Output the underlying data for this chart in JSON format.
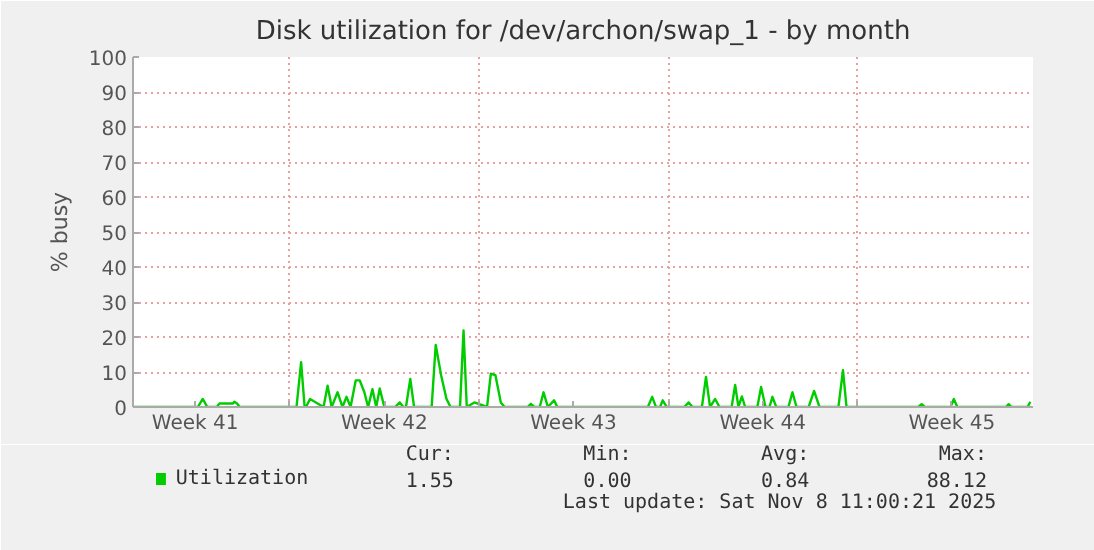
{
  "chart_data": {
    "type": "line",
    "title": "Disk utilization for /dev/archon/swap_1 - by month",
    "ylabel": "% busy",
    "xlim": [
      "2025-10-07T04:48",
      "2025-11-09T12:00"
    ],
    "ylim": [
      0,
      100
    ],
    "xticks": [
      {
        "value": "2025-10-09T12:00",
        "label": "Week 41"
      },
      {
        "value": "2025-10-13",
        "label": null
      },
      {
        "value": "2025-10-16T12:00",
        "label": "Week 42"
      },
      {
        "value": "2025-10-20",
        "label": null
      },
      {
        "value": "2025-10-23T12:00",
        "label": "Week 43"
      },
      {
        "value": "2025-10-27",
        "label": null
      },
      {
        "value": "2025-10-30T12:00",
        "label": "Week 44"
      },
      {
        "value": "2025-11-03",
        "label": null
      },
      {
        "value": "2025-11-06T12:00",
        "label": "Week 45"
      }
    ],
    "yticks": [
      0,
      10,
      20,
      30,
      40,
      50,
      60,
      70,
      80,
      90,
      100
    ],
    "grid": true,
    "legend": "bottom",
    "marker": "none",
    "line_style": "solid",
    "series": [
      {
        "name": "Utilization",
        "color": "#00cc00",
        "x": [
          "2025-10-07T04:48",
          "2025-10-09T14:24",
          "2025-10-09T18:43",
          "2025-10-09T22:48",
          "2025-10-10T07:12",
          "2025-10-10T09:36",
          "2025-10-10T21:36",
          "2025-10-10T22:48",
          "2025-10-11T01:12",
          "2025-10-11T03:36",
          "2025-10-13T06:00",
          "2025-10-13T10:05",
          "2025-10-13T13:12",
          "2025-10-13T14:24",
          "2025-10-13T18:00",
          "2025-10-14T06:00",
          "2025-10-14T09:36",
          "2025-10-14T13:12",
          "2025-10-14T18:29",
          "2025-10-14T22:48",
          "2025-10-15T02:24",
          "2025-10-15T06:00",
          "2025-10-15T10:34",
          "2025-10-15T14:10",
          "2025-10-15T18:14",
          "2025-10-15T21:36",
          "2025-10-16T01:26",
          "2025-10-16T04:48",
          "2025-10-16T07:55",
          "2025-10-16T12:00",
          "2025-10-16T21:36",
          "2025-10-17T01:41",
          "2025-10-17T04:48",
          "2025-10-17T07:12",
          "2025-10-17T11:02",
          "2025-10-17T14:24",
          "2025-10-18T06:00",
          "2025-10-18T09:36",
          "2025-10-18T14:24",
          "2025-10-18T19:12",
          "2025-10-18T22:48",
          "2025-10-19T07:12",
          "2025-10-19T10:19",
          "2025-10-19T13:12",
          "2025-10-19T19:55",
          "2025-10-20T07:12",
          "2025-10-20T10:34",
          "2025-10-20T14:38",
          "2025-10-20T19:26",
          "2025-10-20T22:48",
          "2025-10-21T19:12",
          "2025-10-21T22:05",
          "2025-10-22T01:12",
          "2025-10-22T06:00",
          "2025-10-22T09:22",
          "2025-10-22T13:12",
          "2025-10-22T18:43",
          "2025-10-22T21:36",
          "2025-10-26T06:00",
          "2025-10-26T09:50",
          "2025-10-26T13:12",
          "2025-10-26T16:48",
          "2025-10-26T19:12",
          "2025-10-26T22:48",
          "2025-10-27T14:24",
          "2025-10-27T18:14",
          "2025-10-27T21:36",
          "2025-10-28T06:00",
          "2025-10-28T09:36",
          "2025-10-28T13:12",
          "2025-10-28T17:46",
          "2025-10-28T21:36",
          "2025-10-29T08:24",
          "2025-10-29T11:31",
          "2025-10-29T14:24",
          "2025-10-29T17:31",
          "2025-10-29T20:24",
          "2025-10-30T07:12",
          "2025-10-30T10:34",
          "2025-10-30T14:24",
          "2025-10-30T18:00",
          "2025-10-30T20:38",
          "2025-10-31T00:00",
          "2025-10-31T10:48",
          "2025-10-31T14:24",
          "2025-10-31T18:00",
          "2025-11-01T04:48",
          "2025-11-01T09:36",
          "2025-11-01T14:24",
          "2025-11-02T07:12",
          "2025-11-02T11:17",
          "2025-11-02T14:24",
          "2025-11-05T06:00",
          "2025-11-05T09:07",
          "2025-11-05T12:00",
          "2025-11-06T10:48",
          "2025-11-06T13:41",
          "2025-11-06T16:48",
          "2025-11-08T12:00",
          "2025-11-08T14:24",
          "2025-11-08T16:48",
          "2025-11-09T07:12",
          "2025-11-09T09:36"
        ],
        "values": [
          0,
          0,
          2.3,
          0,
          0,
          1,
          1,
          1.5,
          1,
          0,
          0,
          12.8,
          0,
          0,
          2.3,
          0,
          6.1,
          0,
          4.2,
          0,
          2.9,
          0,
          7.6,
          7.6,
          4.2,
          0,
          5.1,
          0,
          5.3,
          0,
          0,
          1.3,
          0,
          0,
          8,
          0,
          0,
          17.7,
          9.1,
          2.3,
          0,
          0,
          21.9,
          0,
          1.3,
          0,
          9.5,
          9.1,
          1.3,
          0,
          0,
          0.9,
          0,
          0,
          4.2,
          0,
          1.9,
          0,
          0,
          2.9,
          0,
          0,
          1.9,
          0,
          0,
          1.3,
          0,
          0,
          8.6,
          0,
          2.3,
          0,
          0,
          6.3,
          0,
          3.0,
          0,
          0,
          5.7,
          0,
          0,
          2.9,
          0,
          0,
          4.2,
          0,
          0,
          4.6,
          0,
          0,
          10.5,
          0,
          0,
          0.8,
          0,
          0,
          2.3,
          0,
          0,
          0.8,
          0,
          0,
          1.5
        ]
      }
    ],
    "annotations": [
      "Cur:",
      "Min:",
      "Avg:",
      "Max:",
      "1.55",
      "0.00",
      "0.84",
      "88.12",
      "Last update: Sat Nov  8 11:00:21 2025"
    ]
  }
}
